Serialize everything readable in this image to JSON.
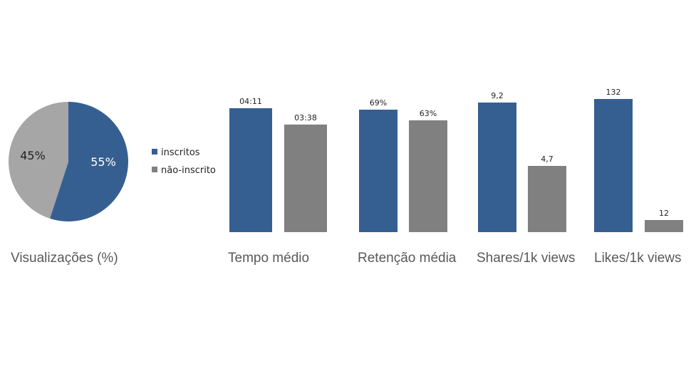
{
  "colors": {
    "inscritos": "#365f91",
    "nao_inscrito": "#808080",
    "pie_nao_inscrito": "#a6a6a6"
  },
  "legend": [
    {
      "label": "inscritos",
      "color": "#365f91"
    },
    {
      "label": "não-inscrito",
      "color": "#808080"
    }
  ],
  "chart_data": [
    {
      "type": "pie",
      "title": "Visualizações (%)",
      "slices": [
        {
          "label": "inscritos",
          "value": 55,
          "display": "55%"
        },
        {
          "label": "não-inscrito",
          "value": 45,
          "display": "45%"
        }
      ]
    },
    {
      "type": "bar",
      "title": "Tempo médio",
      "unit": "min:s",
      "series": [
        {
          "name": "inscritos",
          "value": 251,
          "display": "04:11"
        },
        {
          "name": "não-inscrito",
          "value": 218,
          "display": "03:38"
        }
      ]
    },
    {
      "type": "bar",
      "title": "Retenção média",
      "unit": "%",
      "series": [
        {
          "name": "inscritos",
          "value": 69,
          "display": "69%"
        },
        {
          "name": "não-inscrito",
          "value": 63,
          "display": "63%"
        }
      ]
    },
    {
      "type": "bar",
      "title": "Shares/1k views",
      "series": [
        {
          "name": "inscritos",
          "value": 9.2,
          "display": "9,2"
        },
        {
          "name": "não-inscrito",
          "value": 4.7,
          "display": "4,7"
        }
      ]
    },
    {
      "type": "bar",
      "title": "Likes/1k views",
      "series": [
        {
          "name": "inscritos",
          "value": 132,
          "display": "132"
        },
        {
          "name": "não-inscrito",
          "value": 12,
          "display": "12"
        }
      ]
    }
  ]
}
